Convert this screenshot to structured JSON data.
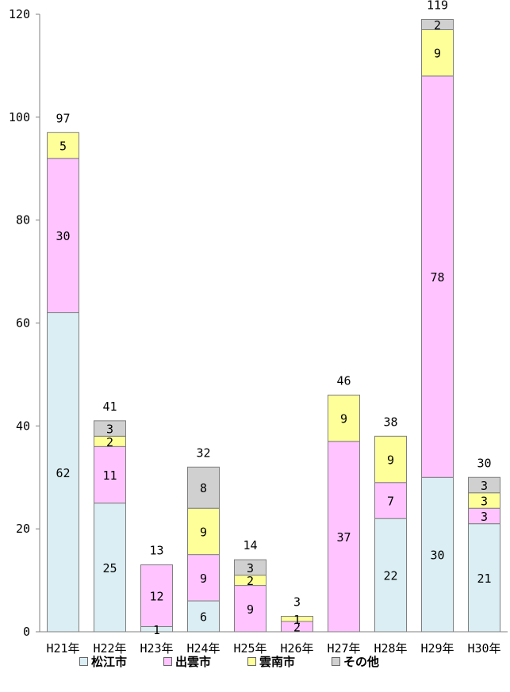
{
  "chart_data": {
    "type": "bar",
    "stacked": true,
    "categories": [
      "H21年",
      "H22年",
      "H23年",
      "H24年",
      "H25年",
      "H26年",
      "H27年",
      "H28年",
      "H29年",
      "H30年"
    ],
    "series": [
      {
        "name": "松江市",
        "color": "#daeef3",
        "values": [
          62,
          25,
          1,
          6,
          0,
          0,
          0,
          22,
          30,
          21
        ]
      },
      {
        "name": "出雲市",
        "color": "#ffc4ff",
        "values": [
          30,
          11,
          12,
          9,
          9,
          2,
          37,
          7,
          78,
          3
        ]
      },
      {
        "name": "雲南市",
        "color": "#ffff99",
        "values": [
          5,
          2,
          0,
          9,
          2,
          1,
          9,
          9,
          9,
          3
        ]
      },
      {
        "name": "その他",
        "color": "#d0d0d0",
        "values": [
          0,
          3,
          0,
          8,
          3,
          0,
          0,
          0,
          2,
          3
        ]
      }
    ],
    "totals": [
      97,
      41,
      13,
      32,
      14,
      3,
      46,
      38,
      119,
      30
    ],
    "segment_labels": [
      [
        "62",
        "30",
        "5",
        ""
      ],
      [
        "25",
        "11",
        "2",
        "3"
      ],
      [
        "1",
        "12",
        "",
        ""
      ],
      [
        "6",
        "9",
        "9",
        "8"
      ],
      [
        "",
        "9",
        "2",
        "3"
      ],
      [
        "",
        "2",
        "1",
        ""
      ],
      [
        "",
        "37",
        "9",
        ""
      ],
      [
        "22",
        "7",
        "9",
        ""
      ],
      [
        "30",
        "78",
        "9",
        "2"
      ],
      [
        "21",
        "3",
        "3",
        "3"
      ]
    ],
    "yticks": [
      0,
      20,
      40,
      60,
      80,
      100,
      120
    ],
    "ylim": [
      0,
      120
    ],
    "grid": false,
    "legend_position": "bottom"
  }
}
